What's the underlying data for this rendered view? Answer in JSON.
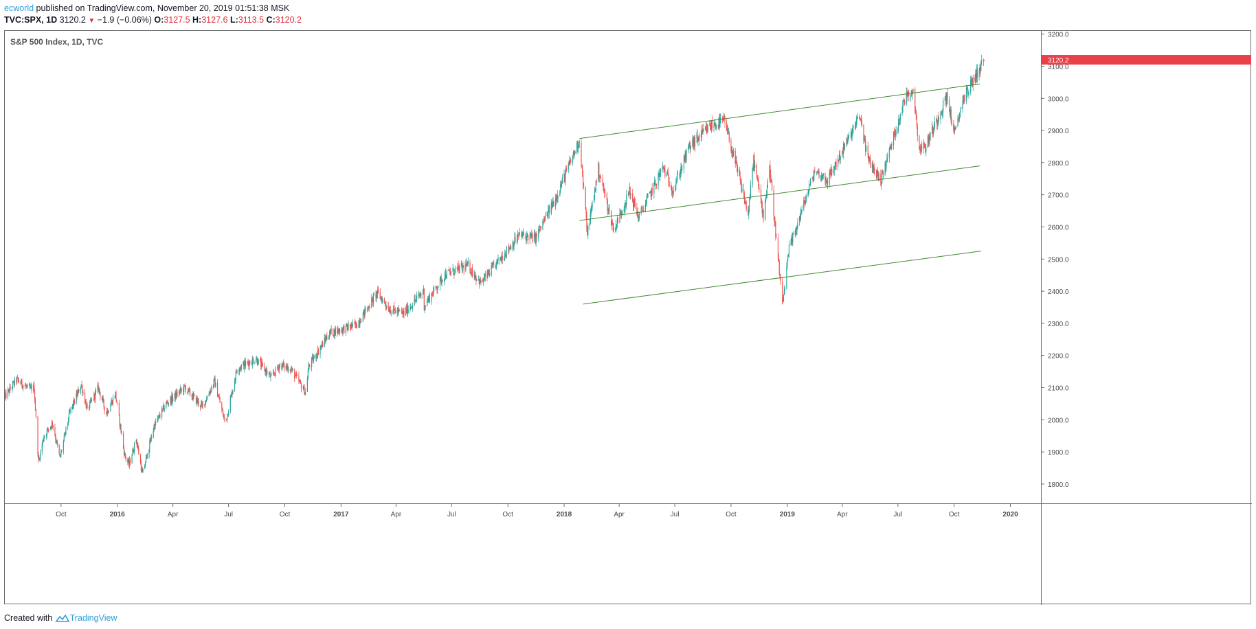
{
  "header": {
    "author": "ecworld",
    "published_text": " published on TradingView.com, November 20, 2019 01:51:38 MSK",
    "symbol": "TVC:SPX, 1D",
    "last": "3120.2",
    "change": "−1.9 (−0.06%)",
    "o_label": "O:",
    "o_value": "3127.5",
    "h_label": "H:",
    "h_value": "3127.6",
    "l_label": "L:",
    "l_value": "3113.5",
    "c_label": "C:",
    "c_value": "3120.2"
  },
  "footer": {
    "created_with": "Created with",
    "brand": "TradingView"
  },
  "colors": {
    "up": "#26a69a",
    "down": "#ef5350",
    "channel": "#3f8a2e",
    "price_badge": "#e8414a",
    "axis_text": "#4a4a4a"
  },
  "chart_data": {
    "type": "candlestick",
    "title": "S&P 500 Index, 1D, TVC",
    "current_price": 3120.2,
    "y_range": [
      1740,
      3210
    ],
    "x_range": [
      "2015-07-01",
      "2020-02-20"
    ],
    "y_ticks": [
      1800,
      1900,
      2000,
      2100,
      2200,
      2300,
      2400,
      2500,
      2600,
      2700,
      2800,
      2900,
      3000,
      3100,
      3200
    ],
    "y_tick_labels": [
      "1800.0",
      "1900.0",
      "2000.0",
      "2100.0",
      "2200.0",
      "2300.0",
      "2400.0",
      "2500.0",
      "2600.0",
      "2700.0",
      "2800.0",
      "2900.0",
      "3000.0",
      "3100.0",
      "3200.0"
    ],
    "x_ticks": [
      {
        "date": "2015-10-01",
        "label": "Oct",
        "bold": false
      },
      {
        "date": "2016-01-01",
        "label": "2016",
        "bold": true
      },
      {
        "date": "2016-04-01",
        "label": "Apr",
        "bold": false
      },
      {
        "date": "2016-07-01",
        "label": "Jul",
        "bold": false
      },
      {
        "date": "2016-10-01",
        "label": "Oct",
        "bold": false
      },
      {
        "date": "2017-01-01",
        "label": "2017",
        "bold": true
      },
      {
        "date": "2017-04-01",
        "label": "Apr",
        "bold": false
      },
      {
        "date": "2017-07-01",
        "label": "Jul",
        "bold": false
      },
      {
        "date": "2017-10-01",
        "label": "Oct",
        "bold": false
      },
      {
        "date": "2018-01-01",
        "label": "2018",
        "bold": true
      },
      {
        "date": "2018-04-01",
        "label": "Apr",
        "bold": false
      },
      {
        "date": "2018-07-01",
        "label": "Jul",
        "bold": false
      },
      {
        "date": "2018-10-01",
        "label": "Oct",
        "bold": false
      },
      {
        "date": "2019-01-01",
        "label": "2019",
        "bold": true
      },
      {
        "date": "2019-04-01",
        "label": "Apr",
        "bold": false
      },
      {
        "date": "2019-07-01",
        "label": "Jul",
        "bold": false
      },
      {
        "date": "2019-10-01",
        "label": "Oct",
        "bold": false
      },
      {
        "date": "2020-01-01",
        "label": "2020",
        "bold": true
      }
    ],
    "price_path": [
      [
        "2015-07-01",
        2070
      ],
      [
        "2015-07-20",
        2125
      ],
      [
        "2015-08-10",
        2095
      ],
      [
        "2015-08-18",
        2100
      ],
      [
        "2015-08-25",
        1870
      ],
      [
        "2015-09-03",
        1950
      ],
      [
        "2015-09-17",
        1990
      ],
      [
        "2015-09-29",
        1880
      ],
      [
        "2015-10-15",
        2020
      ],
      [
        "2015-11-03",
        2110
      ],
      [
        "2015-11-13",
        2030
      ],
      [
        "2015-12-01",
        2100
      ],
      [
        "2015-12-14",
        2020
      ],
      [
        "2015-12-29",
        2080
      ],
      [
        "2016-01-13",
        1890
      ],
      [
        "2016-01-20",
        1860
      ],
      [
        "2016-02-01",
        1940
      ],
      [
        "2016-02-11",
        1830
      ],
      [
        "2016-03-01",
        1980
      ],
      [
        "2016-03-21",
        2050
      ],
      [
        "2016-04-20",
        2100
      ],
      [
        "2016-05-19",
        2040
      ],
      [
        "2016-06-08",
        2120
      ],
      [
        "2016-06-24",
        2000
      ],
      [
        "2016-06-27",
        2000
      ],
      [
        "2016-07-15",
        2160
      ],
      [
        "2016-08-15",
        2190
      ],
      [
        "2016-09-09",
        2130
      ],
      [
        "2016-09-22",
        2170
      ],
      [
        "2016-10-10",
        2160
      ],
      [
        "2016-11-04",
        2085
      ],
      [
        "2016-11-09",
        2165
      ],
      [
        "2016-12-13",
        2270
      ],
      [
        "2017-01-26",
        2295
      ],
      [
        "2017-03-01",
        2395
      ],
      [
        "2017-03-21",
        2345
      ],
      [
        "2017-04-13",
        2330
      ],
      [
        "2017-05-16",
        2400
      ],
      [
        "2017-05-17",
        2355
      ],
      [
        "2017-06-19",
        2450
      ],
      [
        "2017-07-27",
        2480
      ],
      [
        "2017-08-18",
        2425
      ],
      [
        "2017-09-20",
        2505
      ],
      [
        "2017-10-20",
        2575
      ],
      [
        "2017-11-15",
        2565
      ],
      [
        "2017-12-18",
        2690
      ],
      [
        "2018-01-26",
        2870
      ],
      [
        "2018-02-08",
        2580
      ],
      [
        "2018-02-26",
        2780
      ],
      [
        "2018-03-23",
        2590
      ],
      [
        "2018-04-18",
        2710
      ],
      [
        "2018-05-03",
        2630
      ],
      [
        "2018-06-12",
        2785
      ],
      [
        "2018-06-28",
        2715
      ],
      [
        "2018-07-25",
        2850
      ],
      [
        "2018-08-29",
        2915
      ],
      [
        "2018-09-20",
        2930
      ],
      [
        "2018-10-10",
        2785
      ],
      [
        "2018-10-29",
        2640
      ],
      [
        "2018-11-07",
        2810
      ],
      [
        "2018-11-23",
        2635
      ],
      [
        "2018-12-03",
        2790
      ],
      [
        "2018-12-24",
        2355
      ],
      [
        "2019-01-04",
        2530
      ],
      [
        "2019-02-15",
        2775
      ],
      [
        "2019-03-08",
        2745
      ],
      [
        "2019-04-30",
        2945
      ],
      [
        "2019-05-13",
        2810
      ],
      [
        "2019-06-03",
        2745
      ],
      [
        "2019-07-15",
        3015
      ],
      [
        "2019-07-26",
        3025
      ],
      [
        "2019-08-05",
        2845
      ],
      [
        "2019-08-15",
        2850
      ],
      [
        "2019-09-19",
        3005
      ],
      [
        "2019-10-02",
        2887
      ],
      [
        "2019-10-15",
        2995
      ],
      [
        "2019-11-19",
        3120
      ]
    ],
    "annotations": {
      "channel_lines": [
        {
          "from": [
            "2018-01-26",
            2875
          ],
          "to": [
            "2019-11-12",
            3045
          ]
        },
        {
          "from": [
            "2018-01-26",
            2620
          ],
          "to": [
            "2019-11-12",
            2790
          ]
        },
        {
          "from": [
            "2018-02-01",
            2360
          ],
          "to": [
            "2019-11-14",
            2525
          ]
        }
      ]
    }
  }
}
